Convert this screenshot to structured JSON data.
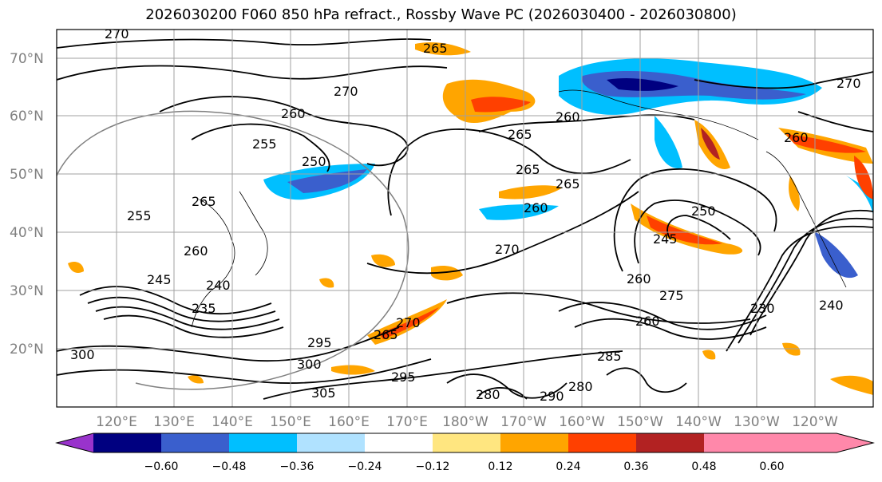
{
  "title": "2026030200 F060 850 hPa refract., Rossby Wave PC (2026030400 - 2026030800)",
  "map": {
    "lat_labels": [
      "70°N",
      "60°N",
      "50°N",
      "40°N",
      "30°N",
      "20°N"
    ],
    "lon_labels": [
      "120°E",
      "130°E",
      "140°E",
      "150°E",
      "160°E",
      "170°E",
      "180°W",
      "170°W",
      "160°W",
      "150°W",
      "140°W",
      "130°W",
      "120°W"
    ],
    "contour_labels": [
      "270",
      "265",
      "270",
      "260",
      "255",
      "250",
      "265",
      "260",
      "265",
      "265",
      "260",
      "245",
      "250",
      "255",
      "260",
      "265",
      "270",
      "260",
      "240",
      "235",
      "245",
      "275",
      "260",
      "265",
      "270",
      "295",
      "300",
      "305",
      "295",
      "280",
      "290",
      "285",
      "280",
      "240",
      "230",
      "260",
      "300",
      "270"
    ]
  },
  "colorbar": {
    "tick_labels": [
      "−0.60",
      "−0.48",
      "−0.36",
      "−0.24",
      "−0.12",
      "0.12",
      "0.24",
      "0.36",
      "0.48",
      "0.60"
    ],
    "colors": [
      "#9933cc",
      "#000080",
      "#3a5fcd",
      "#00bfff",
      "#b0e2ff",
      "#ffffff",
      "#ffe680",
      "#ffa500",
      "#ff4000",
      "#b22222",
      "#ff88aa"
    ]
  }
}
